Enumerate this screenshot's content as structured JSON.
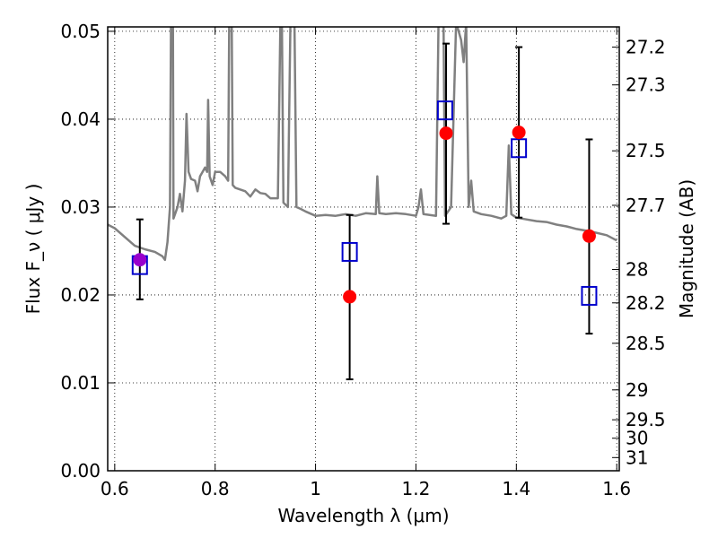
{
  "chart_data": {
    "type": "scatter",
    "xlabel": "Wavelength  λ (μm)",
    "ylabel": "Flux  F_ν  ( μJy )",
    "y2label": "Magnitude (AB)",
    "xlim": [
      0.586,
      1.605
    ],
    "ylim": [
      0.0,
      0.0505
    ],
    "grid": true,
    "x_ticks": [
      {
        "value": 0.6,
        "label": "0.6"
      },
      {
        "value": 0.8,
        "label": "0.8"
      },
      {
        "value": 1.0,
        "label": "1"
      },
      {
        "value": 1.2,
        "label": "1.2"
      },
      {
        "value": 1.4,
        "label": "1.4"
      },
      {
        "value": 1.6,
        "label": "1.6"
      }
    ],
    "y_ticks": [
      {
        "value": 0.0,
        "label": "0.00"
      },
      {
        "value": 0.01,
        "label": "0.01"
      },
      {
        "value": 0.02,
        "label": "0.02"
      },
      {
        "value": 0.03,
        "label": "0.03"
      },
      {
        "value": 0.04,
        "label": "0.04"
      },
      {
        "value": 0.05,
        "label": "0.05"
      }
    ],
    "y2_ticks": [
      {
        "flux": 0.0482,
        "label": "27.2"
      },
      {
        "flux": 0.0439,
        "label": "27.3"
      },
      {
        "flux": 0.0364,
        "label": "27.5"
      },
      {
        "flux": 0.0302,
        "label": "27.7"
      },
      {
        "flux": 0.0229,
        "label": "28"
      },
      {
        "flux": 0.0191,
        "label": "28.2"
      },
      {
        "flux": 0.0145,
        "label": "28.5"
      },
      {
        "flux": 0.0092,
        "label": "29"
      },
      {
        "flux": 0.0058,
        "label": "29.5"
      },
      {
        "flux": 0.0037,
        "label": "30"
      },
      {
        "flux": 0.0015,
        "label": "31"
      }
    ],
    "series": [
      {
        "kind": "line",
        "color": "#808080",
        "points": [
          [
            0.586,
            0.028
          ],
          [
            0.6,
            0.0276
          ],
          [
            0.62,
            0.0266
          ],
          [
            0.64,
            0.0256
          ],
          [
            0.66,
            0.0252
          ],
          [
            0.68,
            0.0249
          ],
          [
            0.695,
            0.0244
          ],
          [
            0.7,
            0.024
          ],
          [
            0.705,
            0.026
          ],
          [
            0.71,
            0.03
          ],
          [
            0.712,
            0.051
          ],
          [
            0.716,
            0.051
          ],
          [
            0.717,
            0.0287
          ],
          [
            0.725,
            0.03
          ],
          [
            0.73,
            0.0315
          ],
          [
            0.735,
            0.0295
          ],
          [
            0.74,
            0.033
          ],
          [
            0.743,
            0.0406
          ],
          [
            0.747,
            0.034
          ],
          [
            0.752,
            0.0332
          ],
          [
            0.76,
            0.033
          ],
          [
            0.765,
            0.0318
          ],
          [
            0.77,
            0.0335
          ],
          [
            0.775,
            0.034
          ],
          [
            0.78,
            0.0345
          ],
          [
            0.784,
            0.034
          ],
          [
            0.786,
            0.0422
          ],
          [
            0.789,
            0.0335
          ],
          [
            0.795,
            0.0325
          ],
          [
            0.8,
            0.034
          ],
          [
            0.81,
            0.034
          ],
          [
            0.82,
            0.0335
          ],
          [
            0.826,
            0.033
          ],
          [
            0.828,
            0.051
          ],
          [
            0.833,
            0.051
          ],
          [
            0.835,
            0.0325
          ],
          [
            0.84,
            0.0322
          ],
          [
            0.86,
            0.0318
          ],
          [
            0.87,
            0.0312
          ],
          [
            0.88,
            0.032
          ],
          [
            0.89,
            0.0316
          ],
          [
            0.9,
            0.0315
          ],
          [
            0.91,
            0.031
          ],
          [
            0.925,
            0.031
          ],
          [
            0.93,
            0.051
          ],
          [
            0.933,
            0.051
          ],
          [
            0.936,
            0.0305
          ],
          [
            0.945,
            0.03
          ],
          [
            0.95,
            0.051
          ],
          [
            0.955,
            0.051
          ],
          [
            0.958,
            0.051
          ],
          [
            0.962,
            0.03
          ],
          [
            0.97,
            0.0298
          ],
          [
            0.98,
            0.0295
          ],
          [
            1.0,
            0.029
          ],
          [
            1.02,
            0.0291
          ],
          [
            1.04,
            0.029
          ],
          [
            1.06,
            0.0292
          ],
          [
            1.08,
            0.029
          ],
          [
            1.1,
            0.0293
          ],
          [
            1.12,
            0.0292
          ],
          [
            1.123,
            0.0335
          ],
          [
            1.127,
            0.0293
          ],
          [
            1.14,
            0.0292
          ],
          [
            1.16,
            0.0293
          ],
          [
            1.18,
            0.0292
          ],
          [
            1.2,
            0.029
          ],
          [
            1.205,
            0.03
          ],
          [
            1.21,
            0.032
          ],
          [
            1.215,
            0.0292
          ],
          [
            1.24,
            0.029
          ],
          [
            1.245,
            0.051
          ],
          [
            1.255,
            0.051
          ],
          [
            1.258,
            0.029
          ],
          [
            1.27,
            0.03
          ],
          [
            1.28,
            0.051
          ],
          [
            1.29,
            0.049
          ],
          [
            1.295,
            0.0465
          ],
          [
            1.3,
            0.051
          ],
          [
            1.305,
            0.03
          ],
          [
            1.31,
            0.033
          ],
          [
            1.315,
            0.0295
          ],
          [
            1.33,
            0.0292
          ],
          [
            1.35,
            0.029
          ],
          [
            1.37,
            0.0287
          ],
          [
            1.38,
            0.029
          ],
          [
            1.385,
            0.037
          ],
          [
            1.39,
            0.0292
          ],
          [
            1.4,
            0.0288
          ],
          [
            1.42,
            0.0286
          ],
          [
            1.44,
            0.0284
          ],
          [
            1.46,
            0.0283
          ],
          [
            1.48,
            0.028
          ],
          [
            1.5,
            0.0278
          ],
          [
            1.52,
            0.0275
          ],
          [
            1.55,
            0.0272
          ],
          [
            1.58,
            0.0268
          ],
          [
            1.6,
            0.0262
          ]
        ]
      },
      {
        "kind": "points",
        "color": "#ff0000",
        "marker": "circle",
        "points": [
          {
            "x": 0.65,
            "y": 0.024,
            "err_low": 0.0195,
            "err_high": 0.0286
          },
          {
            "x": 1.068,
            "y": 0.0198,
            "err_low": 0.0104,
            "err_high": 0.0291
          },
          {
            "x": 1.26,
            "y": 0.0384,
            "err_low": 0.0281,
            "err_high": 0.0486
          },
          {
            "x": 1.405,
            "y": 0.0385,
            "err_low": 0.0288,
            "err_high": 0.0482
          },
          {
            "x": 1.545,
            "y": 0.0267,
            "err_low": 0.0156,
            "err_high": 0.0377
          }
        ]
      },
      {
        "kind": "points",
        "color": "#0000cc",
        "marker": "open-square",
        "points": [
          {
            "x": 0.65,
            "y": 0.0234
          },
          {
            "x": 1.068,
            "y": 0.0249
          },
          {
            "x": 1.258,
            "y": 0.041
          },
          {
            "x": 1.405,
            "y": 0.0367
          },
          {
            "x": 1.545,
            "y": 0.0199
          }
        ]
      }
    ],
    "overlap_marker_color": "#9900cc"
  }
}
